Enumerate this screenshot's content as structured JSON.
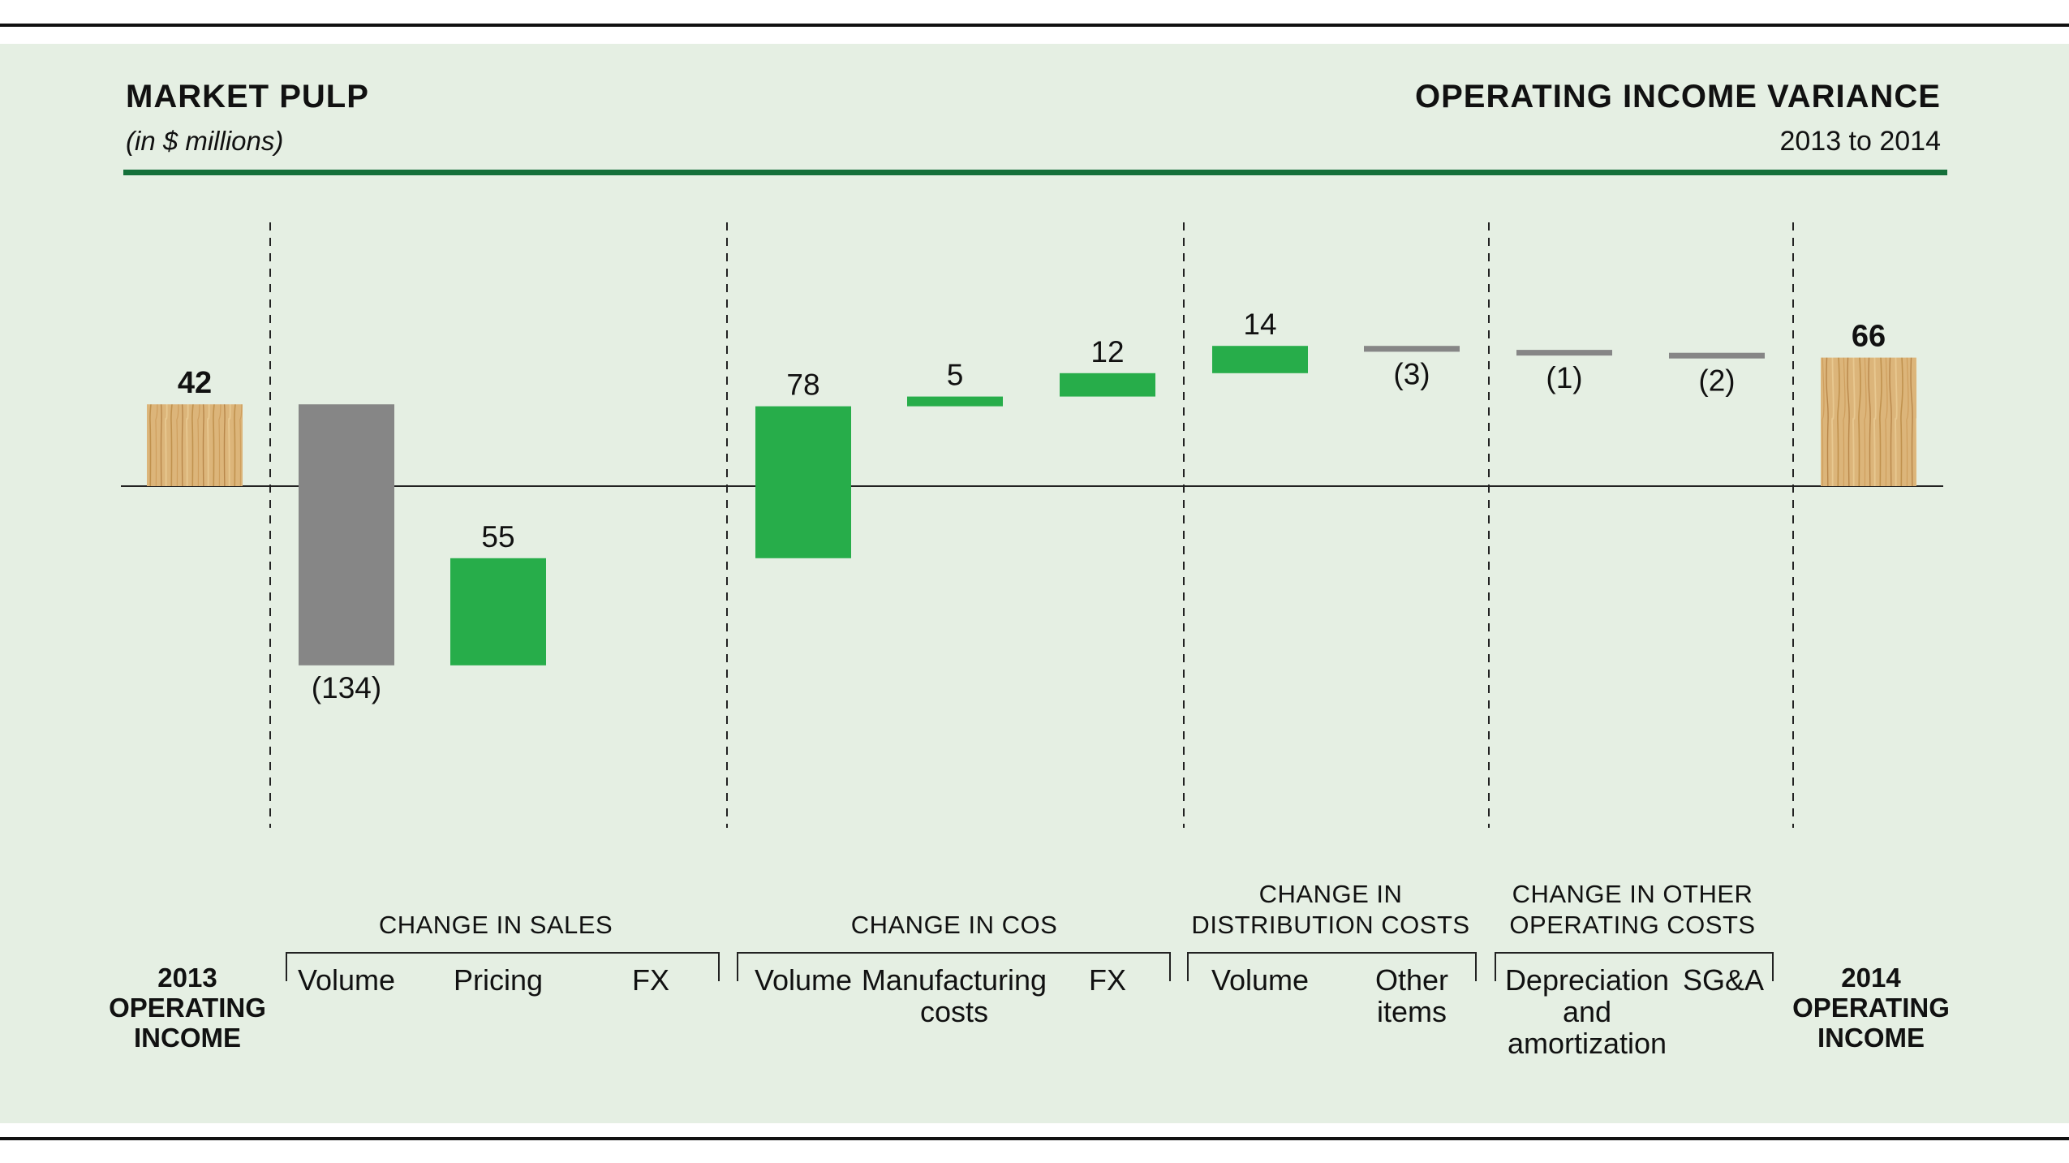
{
  "header": {
    "title_left": "MARKET PULP",
    "subtitle_left": "(in $ millions)",
    "title_right": "OPERATING INCOME VARIANCE",
    "subtitle_right": "2013 to 2014"
  },
  "colors": {
    "background": "#e5efe3",
    "increase": "#27ad4a",
    "decrease": "#868686",
    "total": "#dcb57a",
    "accent_rule": "#14703a"
  },
  "chart_data": {
    "type": "bar",
    "subtype": "waterfall",
    "title": "OPERATING INCOME VARIANCE",
    "unit": "$ millions",
    "bars": [
      {
        "category": "2013 OPERATING INCOME",
        "group": "",
        "kind": "total",
        "value": 42,
        "label": "42"
      },
      {
        "category": "Volume",
        "group": "CHANGE IN SALES",
        "kind": "decrease",
        "value": -134,
        "label": "(134)"
      },
      {
        "category": "Pricing",
        "group": "CHANGE IN SALES",
        "kind": "increase",
        "value": 55,
        "label": "55"
      },
      {
        "category": "FX",
        "group": "CHANGE IN SALES",
        "kind": "none",
        "value": 0,
        "label": ""
      },
      {
        "category": "Volume",
        "group": "CHANGE IN COS",
        "kind": "increase",
        "value": 78,
        "label": "78"
      },
      {
        "category": "Manufacturing costs",
        "group": "CHANGE IN COS",
        "kind": "increase",
        "value": 5,
        "label": "5"
      },
      {
        "category": "FX",
        "group": "CHANGE IN COS",
        "kind": "increase",
        "value": 12,
        "label": "12"
      },
      {
        "category": "Volume",
        "group": "CHANGE IN DISTRIBUTION COSTS",
        "kind": "increase",
        "value": 14,
        "label": "14"
      },
      {
        "category": "Other items",
        "group": "CHANGE IN DISTRIBUTION COSTS",
        "kind": "decrease",
        "value": -3,
        "label": "(3)"
      },
      {
        "category": "Depreciation and amortization",
        "group": "CHANGE IN OTHER OPERATING COSTS",
        "kind": "decrease",
        "value": -1,
        "label": "(1)"
      },
      {
        "category": "SG&A",
        "group": "CHANGE IN OTHER OPERATING COSTS",
        "kind": "decrease",
        "value": -2,
        "label": "(2)"
      },
      {
        "category": "2014 OPERATING INCOME",
        "group": "",
        "kind": "total",
        "value": 66,
        "label": "66"
      }
    ],
    "groups": [
      "CHANGE IN SALES",
      "CHANGE IN COS",
      "CHANGE IN DISTRIBUTION COSTS",
      "CHANGE IN OTHER OPERATING COSTS"
    ]
  },
  "labels": {
    "start_line1": "2013",
    "start_line2": "OPERATING",
    "start_line3": "INCOME",
    "end_line1": "2014",
    "end_line2": "OPERATING",
    "end_line3": "INCOME",
    "group_sales": "CHANGE IN SALES",
    "group_cos": "CHANGE IN COS",
    "group_dist_1": "CHANGE IN",
    "group_dist_2": "DISTRIBUTION COSTS",
    "group_other_1": "CHANGE IN OTHER",
    "group_other_2": "OPERATING COSTS",
    "cat_sales_volume": "Volume",
    "cat_sales_pricing": "Pricing",
    "cat_sales_fx": "FX",
    "cat_cos_volume": "Volume",
    "cat_cos_mfg_1": "Manufacturing",
    "cat_cos_mfg_2": "costs",
    "cat_cos_fx": "FX",
    "cat_dist_volume": "Volume",
    "cat_dist_other_1": "Other",
    "cat_dist_other_2": "items",
    "cat_oth_dep_1": "Depreciation",
    "cat_oth_dep_2": "and",
    "cat_oth_dep_3": "amortization",
    "cat_oth_sga": "SG&A"
  }
}
